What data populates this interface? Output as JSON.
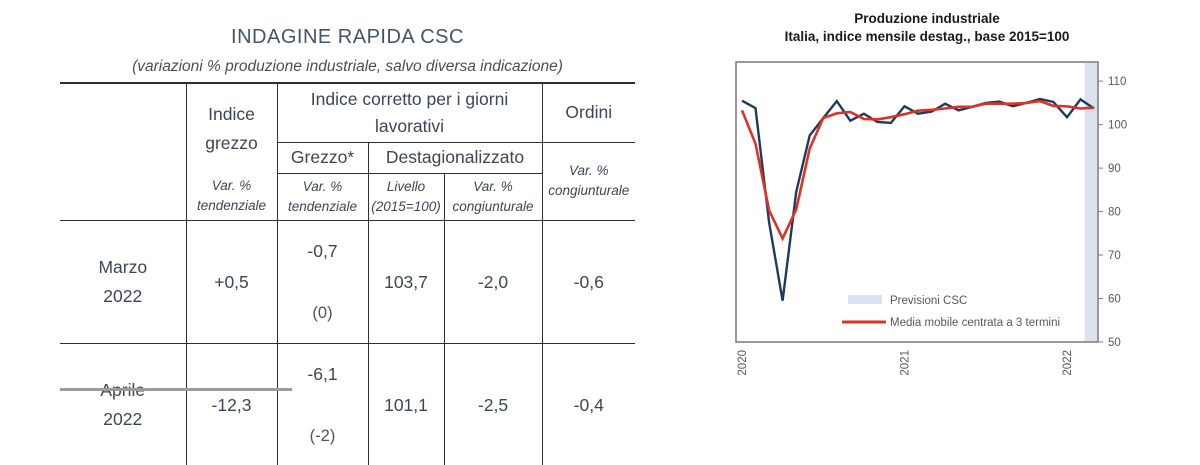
{
  "table_panel": {
    "title": "INDAGINE RAPIDA CSC",
    "subtitle": "(variazioni % produzione industriale, salvo diversa indicazione)",
    "header": {
      "indice_grezzo": "Indice\ngrezzo",
      "indice_corretto": "Indice corretto per i giorni\nlavorativi",
      "ordini": "Ordini",
      "sub_grezzo": "Grezzo*",
      "sub_destagionalizzato": "Destagionalizzato",
      "var_tendenziale": "Var. %\ntendenziale",
      "livello": "Livello\n(2015=100)",
      "var_congiunturale": "Var. %\ncongiunturale"
    },
    "rows": [
      {
        "label": "Marzo\n2022",
        "indice_grezzo": "+0,5",
        "corretto_grezzo": "-0,7",
        "corretto_grezzo_note": "(0)",
        "livello": "103,7",
        "var_congiunturale": "-2,0",
        "ordini": "-0,6"
      },
      {
        "label": "Aprile\n2022",
        "indice_grezzo": "-12,3",
        "corretto_grezzo": "-6,1",
        "corretto_grezzo_note": "(-2)",
        "livello": "101,1",
        "var_congiunturale": "-2,5",
        "ordini": "-0,4"
      }
    ]
  },
  "chart_data": {
    "type": "line",
    "title": "Produzione industriale",
    "subtitle": "Italia, indice mensile destag., base 2015=100",
    "x_monthly_range": [
      "2020-01",
      "2022-03"
    ],
    "x_tick_labels": [
      "2020",
      "2021",
      "2022"
    ],
    "x_tick_month_index": [
      0,
      12,
      24
    ],
    "yticks": [
      50,
      60,
      70,
      80,
      90,
      100,
      110
    ],
    "ylim": [
      50,
      114.4
    ],
    "grid": false,
    "legend_position": "inside-bottom",
    "colors": {
      "axis_text": "#595959",
      "axis_line": "#7f7f7f",
      "plot_border": "#7f7f7f"
    },
    "series": [
      {
        "name": "Produzione industriale, indice destagionalizzato",
        "color": "#1f3a5e",
        "values": [
          105.5,
          103.8,
          77.5,
          59.5,
          84.5,
          97.5,
          101.5,
          105.4,
          100.9,
          102.5,
          100.6,
          100.4,
          104.2,
          102.5,
          103.0,
          104.8,
          103.3,
          104.1,
          105.0,
          105.3,
          104.2,
          105.0,
          105.9,
          105.2,
          101.7,
          105.8,
          103.7
        ]
      },
      {
        "name": "Media mobile centrata a 3 termini",
        "color": "#dd3226",
        "values": [
          103.3,
          95.6,
          80.3,
          73.8,
          80.5,
          94.5,
          101.5,
          102.6,
          102.9,
          101.3,
          101.2,
          101.7,
          102.4,
          103.2,
          103.4,
          103.7,
          104.1,
          104.1,
          104.8,
          104.8,
          104.8,
          105.0,
          105.4,
          104.3,
          104.2,
          103.7,
          103.9
        ]
      }
    ],
    "forecast_band": {
      "label": "Previsioni CSC",
      "color": "#dbe1ee",
      "month_range": [
        25.3,
        26.4
      ]
    },
    "legend": [
      {
        "swatch": "band",
        "label": "Previsioni CSC"
      },
      {
        "swatch": "line",
        "label": "Media mobile centrata a 3 termini"
      }
    ]
  }
}
